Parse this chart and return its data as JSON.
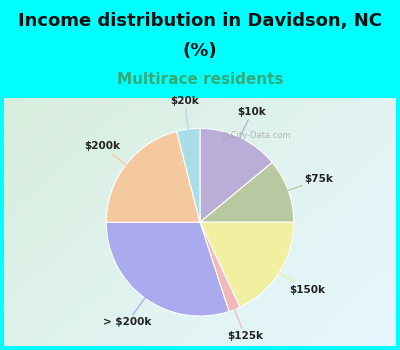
{
  "title_line1": "Income distribution in Davidson, NC",
  "title_line2": "(%)",
  "subtitle": "Multirace residents",
  "watermark": "ⓘ City-Data.com",
  "slices": [
    {
      "label": "$10k",
      "value": 14,
      "color": "#b8aed8"
    },
    {
      "label": "$75k",
      "value": 11,
      "color": "#b8c8a0"
    },
    {
      "label": "$150k",
      "value": 18,
      "color": "#f0f0a0"
    },
    {
      "label": "$125k",
      "value": 2,
      "color": "#f2b8b8"
    },
    {
      "label": "> $200k",
      "value": 30,
      "color": "#aaaaee"
    },
    {
      "label": "$200k",
      "value": 21,
      "color": "#f5c9a0"
    },
    {
      "label": "$20k",
      "value": 4,
      "color": "#aadde8"
    }
  ],
  "bg_color": "#00ffff",
  "chart_bg_tl": [
    0.847,
    0.933,
    0.867
  ],
  "chart_bg_br": [
    0.906,
    0.969,
    1.0
  ],
  "title_fontsize": 13,
  "subtitle_fontsize": 11,
  "subtitle_color": "#33aa77",
  "label_fontsize": 7.5
}
